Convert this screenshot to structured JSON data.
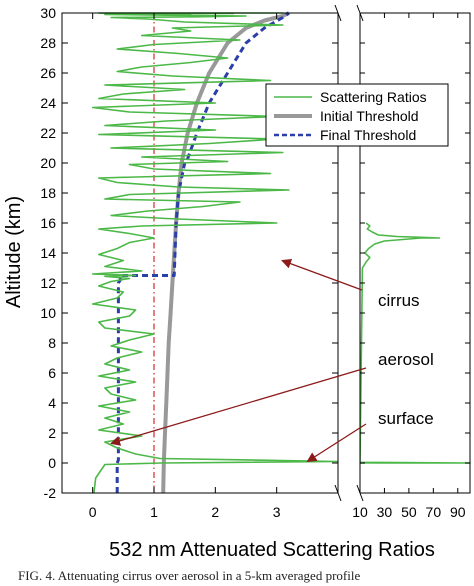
{
  "caption": "FIG. 4. Attenuating cirrus over aerosol in a 5-km averaged profile",
  "chart_data": {
    "type": "line",
    "title": "",
    "xlabel": "532 nm Attenuated Scattering Ratios",
    "ylabel": "Altitude (km)",
    "ylim": [
      -2,
      30
    ],
    "yticks": [
      -2,
      0,
      2,
      4,
      6,
      8,
      10,
      12,
      14,
      16,
      18,
      20,
      22,
      24,
      26,
      28,
      30
    ],
    "panels": [
      {
        "name": "main",
        "xlim": [
          -0.5,
          4
        ],
        "xticks": [
          0,
          1,
          2,
          3
        ],
        "xtick_labels": [
          "0",
          "1",
          "2",
          "3"
        ]
      },
      {
        "name": "broken",
        "xlim": [
          10,
          100
        ],
        "xticks": [
          10,
          30,
          50,
          70,
          90
        ],
        "xtick_labels": [
          "10",
          "30",
          "50",
          "70",
          "90"
        ]
      }
    ],
    "reference_line": {
      "x": 1,
      "color": "#d62728",
      "style": "dash-dot"
    },
    "legend": {
      "position": "upper-right",
      "entries": [
        {
          "label": "Scattering Ratios",
          "color": "#4cb848",
          "style": "solid-thin"
        },
        {
          "label": "Initial Threshold",
          "color": "#999999",
          "style": "solid-thick"
        },
        {
          "label": "Final Threshold",
          "color": "#2a3fa8",
          "style": "dashed"
        }
      ]
    },
    "series": [
      {
        "name": "Initial Threshold",
        "color": "#999999",
        "x": [
          1.15,
          1.16,
          1.18,
          1.2,
          1.22,
          1.24,
          1.27,
          1.3,
          1.33,
          1.36,
          1.4,
          1.45,
          1.55,
          1.7,
          1.9,
          2.2,
          2.5,
          2.8,
          3.1,
          3.2
        ],
        "y": [
          -2,
          0,
          2,
          4,
          6,
          8,
          10,
          12,
          14,
          16,
          18,
          20,
          22,
          24,
          26,
          28,
          29,
          29.5,
          29.8,
          30
        ]
      },
      {
        "name": "Final Threshold",
        "color": "#2a3fa8",
        "x": [
          0.4,
          0.4,
          0.42,
          0.42,
          0.45,
          0.45,
          1.33,
          1.36,
          1.4,
          1.5,
          1.55,
          1.7,
          1.9,
          2.2,
          2.5,
          2.8,
          3.1,
          3.2
        ],
        "y": [
          -2,
          0,
          0.2,
          12.0,
          12.2,
          12.5,
          12.5,
          16,
          18,
          20.0,
          20.3,
          22,
          24,
          26,
          28,
          29,
          29.7,
          30
        ]
      },
      {
        "name": "Scattering Ratios",
        "color": "#4cb848",
        "x": [
          0.02,
          0.05,
          0.2,
          1.12,
          4.0,
          1.1,
          0.7,
          0.4,
          0.2,
          0.8,
          0.1,
          0.5,
          0.2,
          0.6,
          0.1,
          0.7,
          0.3,
          0.2,
          0.7,
          0.1,
          0.6,
          0.2,
          0.4,
          0.8,
          0.3,
          0.6,
          1.0,
          0.2,
          0.1,
          0.6,
          0.7,
          0.0,
          0.4,
          0.5,
          0.1,
          0.3,
          0.6,
          0.2,
          0.7,
          0.0,
          0.8,
          0.2,
          0.5,
          0.1,
          0.4,
          0.6,
          1.0,
          0.6,
          0.1,
          0.8,
          3.0,
          1.2,
          0.3,
          0.9,
          1.8,
          2.4,
          0.2,
          0.6,
          3.2,
          1.4,
          0.4,
          0.1,
          2.9,
          1.0,
          0.6,
          2.2,
          0.8,
          3.1,
          0.3,
          1.9,
          3.0,
          0.1,
          2.0,
          0.2,
          1.2,
          3.0,
          0.6,
          0.0,
          2.0,
          0.1,
          0.5,
          1.5,
          0.2,
          2.9,
          1.3,
          0.4,
          0.8,
          1.6,
          2.2,
          1.4,
          0.4,
          1.0,
          2.4,
          0.8,
          1.6,
          1.3,
          3.1,
          1.5,
          0.9,
          0.3,
          1.7,
          2.5,
          1.4,
          0.2,
          1.6,
          1.1,
          0.2,
          1.1,
          2.3,
          0.7,
          1.0,
          1.2,
          1.4,
          0.8,
          0.9,
          2.0,
          0.2,
          1.5,
          0.7,
          0.1,
          2.3,
          0.9,
          1.7,
          2.6,
          0.3,
          3.1,
          2.2,
          3.0
        ],
        "y": [
          -2,
          -1,
          -0.1,
          0.0,
          0.1,
          0.3,
          0.6,
          1.0,
          1.4,
          1.8,
          2.2,
          2.6,
          3.0,
          3.4,
          3.8,
          4.2,
          4.6,
          5.0,
          5.4,
          5.8,
          6.2,
          6.6,
          7.0,
          7.4,
          7.8,
          8.2,
          8.6,
          9.0,
          9.4,
          9.8,
          10.2,
          10.6,
          11.0,
          11.4,
          11.8,
          12.1,
          12.3,
          12.45,
          12.5,
          12.6,
          12.8,
          13.1,
          13.5,
          13.9,
          14.3,
          14.7,
          15.0,
          15.3,
          15.6,
          15.8,
          16.0,
          16.3,
          16.5,
          16.8,
          17.1,
          17.4,
          17.6,
          17.9,
          18.2,
          18.4,
          18.7,
          19.0,
          19.3,
          19.6,
          19.9,
          20.1,
          20.4,
          20.7,
          21.0,
          21.3,
          21.6,
          21.9,
          22.2,
          22.5,
          22.8,
          23.1,
          23.4,
          23.7,
          24.0,
          24.3,
          24.6,
          24.9,
          25.2,
          25.5,
          25.8,
          26.1,
          26.4,
          26.7,
          27.0,
          27.3,
          27.6,
          27.9,
          28.2,
          28.5,
          28.8,
          29.0,
          29.2,
          29.4,
          29.6,
          29.7,
          29.75,
          29.8,
          29.85,
          29.9,
          29.92,
          29.94,
          29.95,
          29.96,
          29.97,
          29.975,
          29.98,
          29.982,
          29.984,
          29.986,
          29.988,
          29.99,
          29.992,
          29.993,
          29.994,
          29.995,
          29.996,
          29.997,
          29.998,
          29.9985,
          29.999,
          29.9995,
          29.9998,
          30
        ]
      },
      {
        "name": "Scattering Ratios (broken axis)",
        "color": "#4cb848",
        "x": [
          10,
          100,
          10,
          12,
          15,
          18,
          14,
          17,
          22,
          30,
          45,
          60,
          75,
          60,
          40,
          25,
          20,
          16,
          18,
          15
        ],
        "y": [
          0.0,
          0.0,
          0.05,
          13.0,
          13.4,
          13.7,
          14.0,
          14.3,
          14.6,
          14.8,
          14.9,
          15.0,
          15.0,
          15.05,
          15.1,
          15.2,
          15.4,
          15.6,
          15.8,
          16.0
        ]
      }
    ],
    "annotations": [
      {
        "text": "cirrus",
        "arrow_to": {
          "panel": "broken",
          "x": 10,
          "y": 13.5
        }
      },
      {
        "text": "aerosol",
        "arrow_to": {
          "panel": "main",
          "x": 0.3,
          "y": 1.3
        }
      },
      {
        "text": "surface",
        "arrow_to": {
          "panel": "main",
          "x": 3.5,
          "y": 0.1
        }
      }
    ],
    "annotation_color": "#8b1a1a",
    "grid": false
  }
}
